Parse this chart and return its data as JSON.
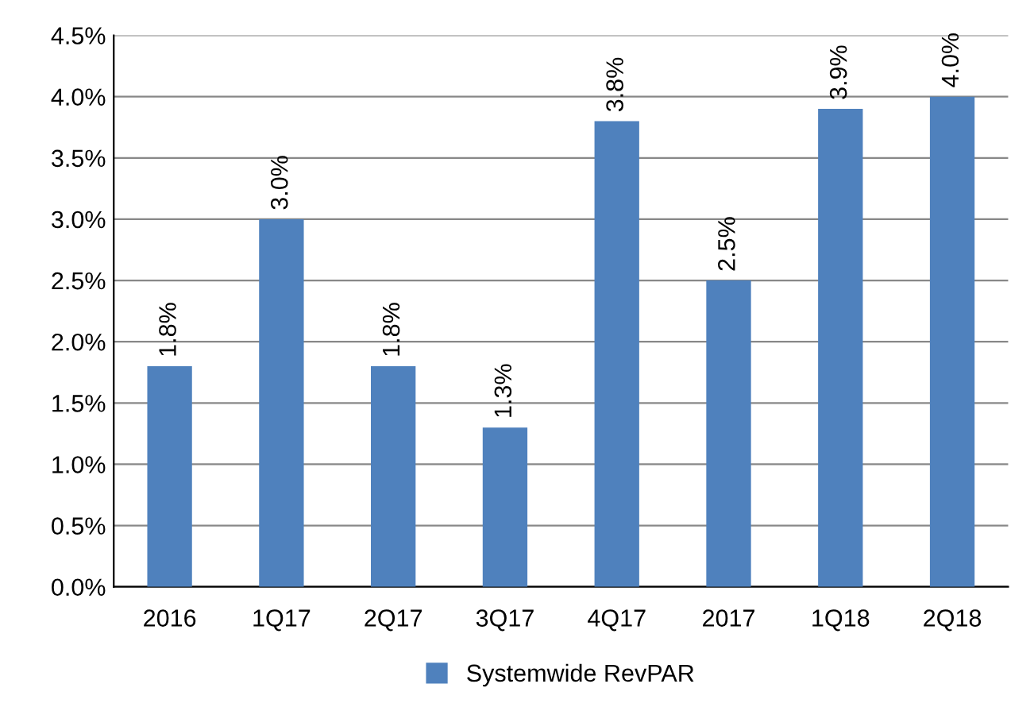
{
  "chart_data": {
    "type": "bar",
    "categories": [
      "2016",
      "1Q17",
      "2Q17",
      "3Q17",
      "4Q17",
      "2017",
      "1Q18",
      "2Q18"
    ],
    "series": [
      {
        "name": "Systemwide RevPAR",
        "color": "#4f81bd",
        "values": [
          1.8,
          3.0,
          1.8,
          1.3,
          3.8,
          2.5,
          3.9,
          4.0
        ],
        "value_labels": [
          "1.8%",
          "3.0%",
          "1.8%",
          "1.3%",
          "3.8%",
          "2.5%",
          "3.9%",
          "4.0%"
        ]
      }
    ],
    "ylim": [
      0,
      4.5
    ],
    "yticks": [
      {
        "value": 0,
        "label": "0.0%"
      },
      {
        "value": 0.5,
        "label": "0.5%"
      },
      {
        "value": 1.0,
        "label": "1.0%"
      },
      {
        "value": 1.5,
        "label": "1.5%"
      },
      {
        "value": 2.0,
        "label": "2.0%"
      },
      {
        "value": 2.5,
        "label": "2.5%"
      },
      {
        "value": 3.0,
        "label": "3.0%"
      },
      {
        "value": 3.5,
        "label": "3.5%"
      },
      {
        "value": 4.0,
        "label": "4.0%"
      },
      {
        "value": 4.5,
        "label": "4.5%"
      }
    ],
    "grid": "y",
    "legend": "bottom"
  }
}
